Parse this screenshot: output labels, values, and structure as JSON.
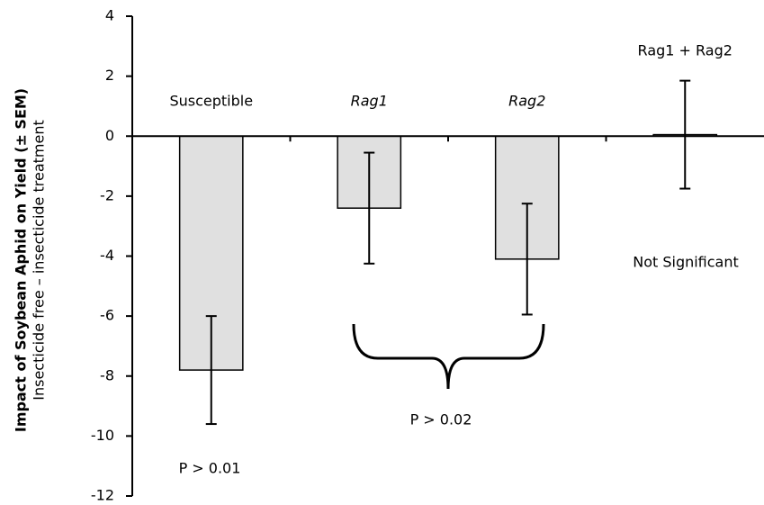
{
  "chart_data": {
    "type": "bar",
    "y_label": "Impact of Soybean Aphid on Yield (± SEM)",
    "y_label_sub": "Insecticide free – insecticide treatment",
    "categories": [
      "Susceptible",
      "Rag1",
      "Rag2",
      "Rag1 + Rag2"
    ],
    "values": [
      -7.8,
      -2.4,
      -4.1,
      0.05
    ],
    "errors": [
      1.8,
      1.85,
      1.85,
      1.8
    ],
    "color": "#e0e0e0",
    "ylim": [
      -12,
      4
    ],
    "yticks": [
      -12,
      -10,
      -8,
      -6,
      -4,
      -2,
      0,
      2,
      4
    ],
    "annotations": [
      "P > 0.01",
      "P > 0.02",
      "Not Significant"
    ]
  }
}
